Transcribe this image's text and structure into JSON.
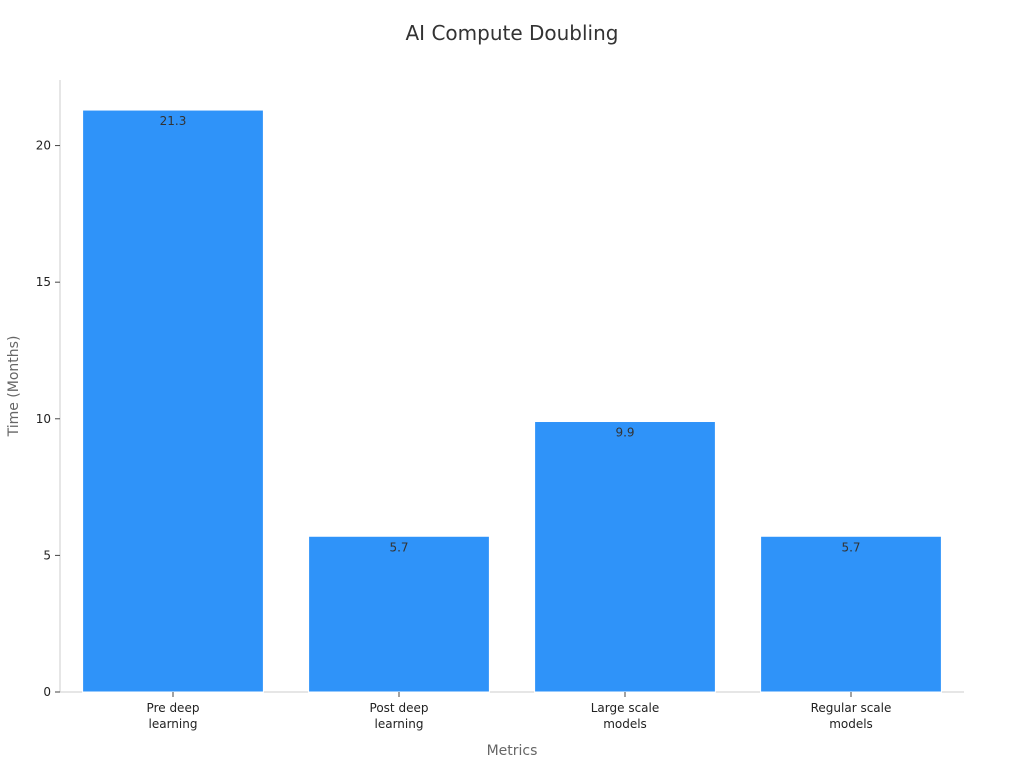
{
  "chart_data": {
    "type": "bar",
    "title": "AI Compute Doubling",
    "xlabel": "Metrics",
    "ylabel": "Time (Months)",
    "categories": [
      [
        "Pre deep",
        "learning"
      ],
      [
        "Post deep",
        "learning"
      ],
      [
        "Large scale",
        "models"
      ],
      [
        "Regular scale",
        "models"
      ]
    ],
    "values": [
      21.3,
      5.7,
      9.9,
      5.7
    ],
    "data_labels": [
      "21.3",
      "5.7",
      "9.9",
      "5.7"
    ],
    "ylim": [
      0,
      22.4
    ],
    "yticks": [
      0,
      5,
      10,
      15,
      20
    ],
    "bar_color": "#2f93f9",
    "grid": false,
    "legend": "none"
  }
}
